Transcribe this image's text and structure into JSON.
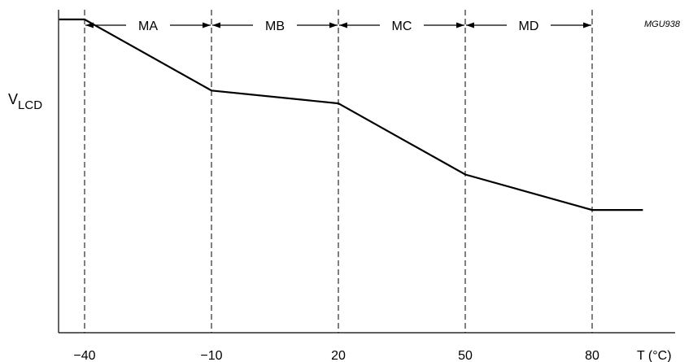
{
  "figure_id": "MGU938",
  "chart_data": {
    "type": "line",
    "ylabel": {
      "main": "V",
      "subscript": "LCD"
    },
    "xlabel": "T (°C)",
    "x_ticks": [
      "−40",
      "−10",
      "20",
      "50",
      "80"
    ],
    "x_tick_values": [
      -40,
      -10,
      20,
      50,
      80
    ],
    "xlim": [
      -46,
      94
    ],
    "ylim": [
      0,
      1
    ],
    "y_ticks": [],
    "grid": "dashed vertical lines at x ticks",
    "regions": [
      {
        "label": "MA",
        "from": -40,
        "to": -10
      },
      {
        "label": "MB",
        "from": -10,
        "to": 20
      },
      {
        "label": "MC",
        "from": 20,
        "to": 50
      },
      {
        "label": "MD",
        "from": 50,
        "to": 80
      }
    ],
    "series": [
      {
        "x": [
          -46,
          -40,
          -10,
          20,
          50,
          80,
          92
        ],
        "y": [
          0.97,
          0.97,
          0.75,
          0.71,
          0.49,
          0.38,
          0.38
        ]
      }
    ]
  }
}
